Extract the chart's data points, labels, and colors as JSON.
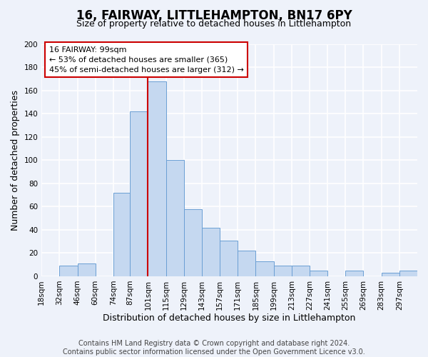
{
  "title": "16, FAIRWAY, LITTLEHAMPTON, BN17 6PY",
  "subtitle": "Size of property relative to detached houses in Littlehampton",
  "xlabel": "Distribution of detached houses by size in Littlehampton",
  "ylabel": "Number of detached properties",
  "bin_labels": [
    "18sqm",
    "32sqm",
    "46sqm",
    "60sqm",
    "74sqm",
    "87sqm",
    "101sqm",
    "115sqm",
    "129sqm",
    "143sqm",
    "157sqm",
    "171sqm",
    "185sqm",
    "199sqm",
    "213sqm",
    "227sqm",
    "241sqm",
    "255sqm",
    "269sqm",
    "283sqm",
    "297sqm"
  ],
  "bar_heights": [
    0,
    9,
    11,
    0,
    72,
    142,
    168,
    100,
    58,
    42,
    31,
    22,
    13,
    9,
    9,
    5,
    0,
    5,
    0,
    3,
    5
  ],
  "bar_color": "#c5d8f0",
  "bar_edge_color": "#6b9fd4",
  "property_line_label": "16 FAIRWAY: 99sqm",
  "annotation_line1": "← 53% of detached houses are smaller (365)",
  "annotation_line2": "45% of semi-detached houses are larger (312) →",
  "annotation_box_color": "#ffffff",
  "annotation_box_edge": "#cc0000",
  "vline_color": "#cc0000",
  "ylim": [
    0,
    200
  ],
  "yticks": [
    0,
    20,
    40,
    60,
    80,
    100,
    120,
    140,
    160,
    180,
    200
  ],
  "footer_line1": "Contains HM Land Registry data © Crown copyright and database right 2024.",
  "footer_line2": "Contains public sector information licensed under the Open Government Licence v3.0.",
  "bg_color": "#eef2fa",
  "grid_color": "#ffffff",
  "title_fontsize": 12,
  "subtitle_fontsize": 9,
  "axis_label_fontsize": 9,
  "tick_fontsize": 7.5,
  "footer_fontsize": 7,
  "annotation_fontsize": 8
}
